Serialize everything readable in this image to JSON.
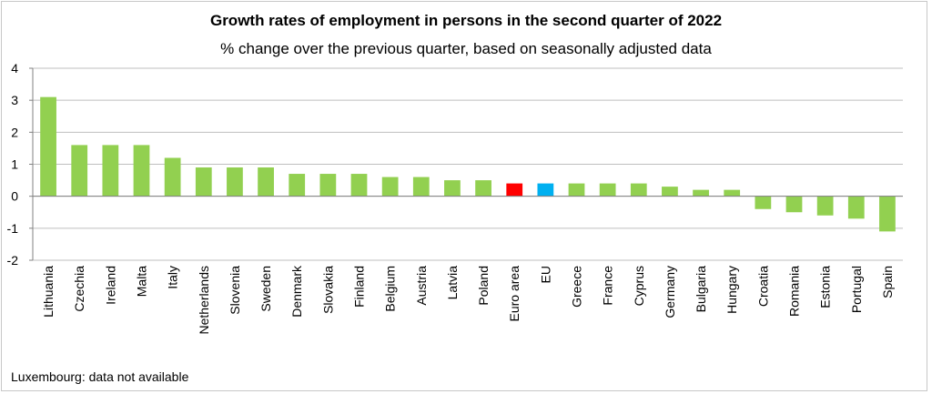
{
  "chart_data": {
    "type": "bar",
    "title": "Growth rates of employment in persons in the second quarter of 2022",
    "subtitle": "% change over the previous quarter, based on seasonally adjusted data",
    "xlabel": "",
    "ylabel": "",
    "ylim": [
      -2,
      4
    ],
    "yticks": [
      "4",
      "3",
      "2",
      "1",
      "0",
      "-1",
      "-2"
    ],
    "ytick_values": [
      4,
      3,
      2,
      1,
      0,
      -1,
      -2
    ],
    "grid": true,
    "categories": [
      "Lithuania",
      "Czechia",
      "Ireland",
      "Malta",
      "Italy",
      "Netherlands",
      "Slovenia",
      "Sweden",
      "Denmark",
      "Slovakia",
      "Finland",
      "Belgium",
      "Austria",
      "Latvia",
      "Poland",
      "Euro area",
      "EU",
      "Greece",
      "France",
      "Cyprus",
      "Germany",
      "Bulgaria",
      "Hungary",
      "Croatia",
      "Romania",
      "Estonia",
      "Portugal",
      "Spain"
    ],
    "values": [
      3.1,
      1.6,
      1.6,
      1.6,
      1.2,
      0.9,
      0.9,
      0.9,
      0.7,
      0.7,
      0.7,
      0.6,
      0.6,
      0.5,
      0.5,
      0.4,
      0.4,
      0.4,
      0.4,
      0.4,
      0.3,
      0.2,
      0.2,
      -0.4,
      -0.5,
      -0.6,
      -0.7,
      -1.1
    ],
    "colors": {
      "default": "#92d050",
      "Euro area": "#ff0000",
      "EU": "#00b0f0"
    },
    "footnote": "Luxembourg: data not available"
  }
}
